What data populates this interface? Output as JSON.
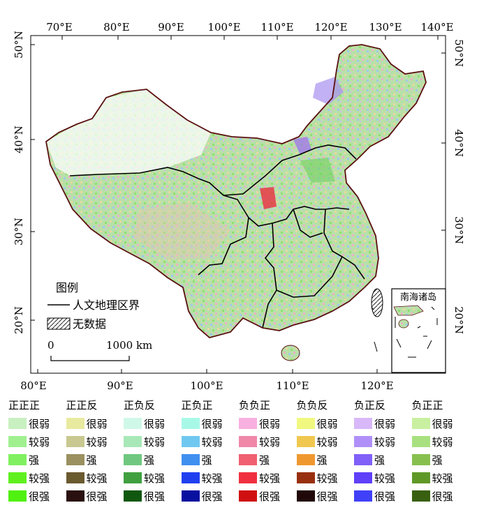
{
  "map": {
    "top_lon_labels": [
      "70°E",
      "80°E",
      "90°E",
      "100°E",
      "110°E",
      "120°E",
      "130°E",
      "140°E"
    ],
    "bottom_lon_labels": [
      "80°E",
      "90°E",
      "100°E",
      "110°E",
      "120°E"
    ],
    "left_lat_labels": [
      "50°N",
      "40°N",
      "30°N",
      "20°N"
    ],
    "right_lat_labels": [
      "50°N",
      "40°N",
      "30°N",
      "20°N"
    ],
    "inset_title": "南海诸岛",
    "map_legend_title": "图例",
    "boundary_label": "人文地理区界",
    "nodata_label": "无数据",
    "scale_start": "0",
    "scale_end": "1000 km"
  },
  "legend": {
    "columns": [
      {
        "header": "正正正",
        "labels": [
          "很弱",
          "较弱",
          "强",
          "较强",
          "很强"
        ],
        "colors": [
          "#c8f0c0",
          "#a0f090",
          "#80f060",
          "#60f020",
          "#50f010"
        ]
      },
      {
        "header": "正正反",
        "labels": [
          "很弱",
          "较弱",
          "强",
          "较强",
          "很强"
        ],
        "colors": [
          "#e8eaa0",
          "#c8c890",
          "#9a9060",
          "#6a5a30",
          "#2a1010"
        ]
      },
      {
        "header": "正负反",
        "labels": [
          "很弱",
          "较弱",
          "强",
          "较强",
          "很强"
        ],
        "colors": [
          "#d0f8e8",
          "#a8e8b8",
          "#70c880",
          "#40a040",
          "#105810"
        ]
      },
      {
        "header": "正负正",
        "labels": [
          "很弱",
          "较弱",
          "强",
          "较强",
          "很强"
        ],
        "colors": [
          "#a8f8e8",
          "#70c8f0",
          "#4090f0",
          "#2040f0",
          "#0810a0"
        ]
      },
      {
        "header": "负负正",
        "labels": [
          "很弱",
          "较弱",
          "强",
          "较强",
          "很强"
        ],
        "colors": [
          "#f8b0e0",
          "#f088a8",
          "#f06070",
          "#f03040",
          "#d01010"
        ]
      },
      {
        "header": "负负反",
        "labels": [
          "很弱",
          "较弱",
          "强",
          "较强",
          "很强"
        ],
        "colors": [
          "#f0f880",
          "#f0c850",
          "#f09830",
          "#983010",
          "#200808"
        ]
      },
      {
        "header": "负正反",
        "labels": [
          "很弱",
          "较弱",
          "强",
          "较强",
          "很强"
        ],
        "colors": [
          "#d8b8f8",
          "#b090f8",
          "#8060f8",
          "#6040f8",
          "#4040f8"
        ]
      },
      {
        "header": "负正正",
        "labels": [
          "很弱",
          "较弱",
          "强",
          "较强",
          "很强"
        ],
        "colors": [
          "#c8f0a0",
          "#a8e080",
          "#88c050",
          "#609828",
          "#386010"
        ]
      }
    ]
  }
}
